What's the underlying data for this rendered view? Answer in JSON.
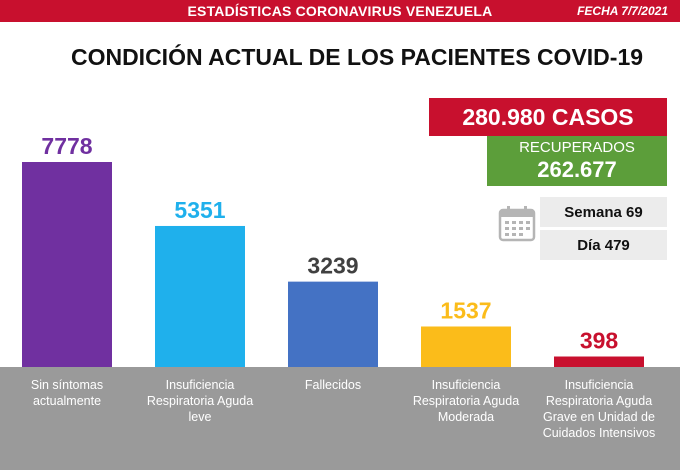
{
  "header": {
    "title": "ESTADÍSTICAS CORONAVIRUS VENEZUELA",
    "date": "FECHA 7/7/2021"
  },
  "summary": {
    "casos": "280.980 CASOS",
    "recuperados_label": "RECUPERADOS",
    "recuperados_value": "262.677",
    "semana": "Semana 69",
    "dia": "Día 479",
    "icon": "calendar-icon"
  },
  "colors": {
    "header_red": "#c8102e",
    "recovered_green": "#5c9e3a",
    "axis_band": "#9a9a9a"
  },
  "chart_data": {
    "type": "bar",
    "title": "CONDICIÓN ACTUAL DE LOS PACIENTES COVID-19",
    "categories": [
      "Sin síntomas actualmente",
      "Insuficiencia Respiratoria Aguda leve",
      "Fallecidos",
      "Insuficiencia Respiratoria Aguda Moderada",
      "Insuficiencia Respiratoria Aguda Grave en Unidad de Cuidados Intensivos"
    ],
    "values": [
      7778,
      5351,
      3239,
      1537,
      398
    ],
    "value_labels": [
      "7778",
      "5351",
      "3239",
      "1537",
      "398"
    ],
    "colors": [
      "#7030a0",
      "#1fb0ec",
      "#4472c4",
      "#fbbc1a",
      "#c8102e"
    ],
    "label_colors": [
      "#7030a0",
      "#1fb0ec",
      "#404040",
      "#fbbc1a",
      "#c8102e"
    ],
    "ylim": [
      0,
      7778
    ],
    "grid": false,
    "legend": "none"
  }
}
